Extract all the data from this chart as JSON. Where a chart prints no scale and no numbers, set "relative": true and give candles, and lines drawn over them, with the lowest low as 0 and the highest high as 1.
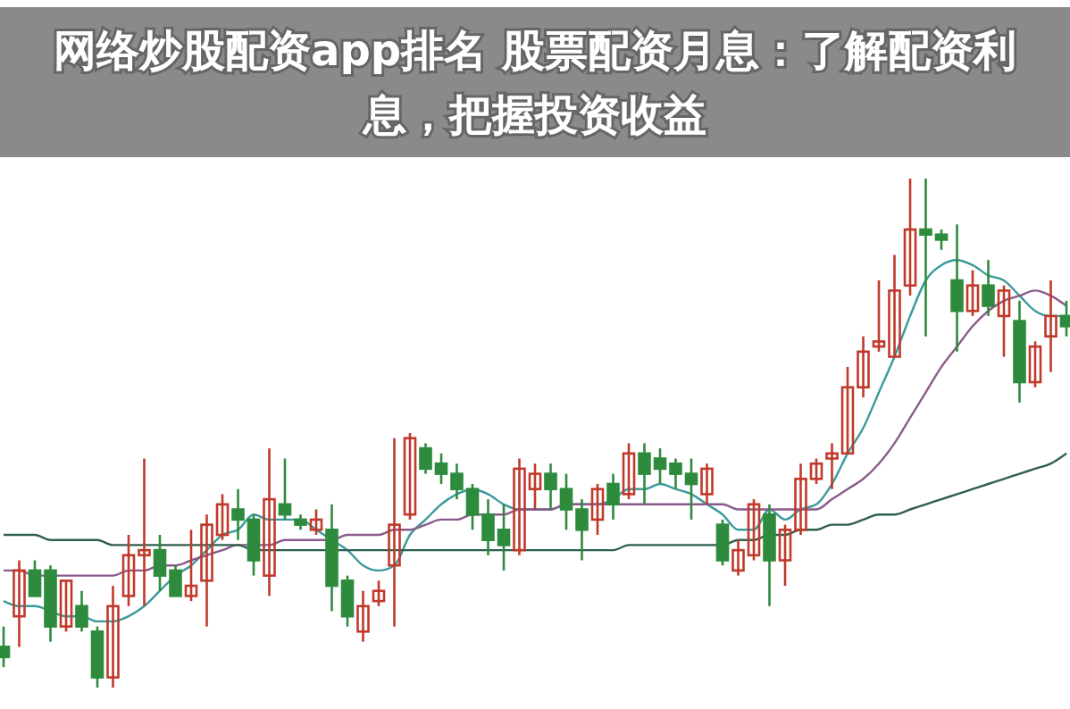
{
  "chart_data": {
    "type": "candlestick",
    "title": "网络炒股配资app排名 股票配资月息：了解配资利息，把握投资收益",
    "relative": true,
    "categories": [
      null,
      null,
      null,
      null,
      null,
      null,
      null,
      null,
      null,
      null,
      null,
      null,
      null,
      null,
      null,
      null,
      null,
      null,
      null,
      null,
      null,
      null,
      null,
      null,
      null,
      null,
      null,
      null,
      null,
      null,
      null,
      null,
      null,
      null,
      null,
      null,
      null,
      null,
      null,
      null,
      null,
      null,
      null,
      null,
      null,
      null,
      null,
      null,
      null,
      null,
      null,
      null,
      null,
      null,
      null,
      null,
      null,
      null,
      null,
      null,
      null,
      null,
      null,
      null,
      null,
      null,
      null,
      null,
      null
    ],
    "ohlc": [
      [
        0.08,
        0.12,
        0.04,
        0.06
      ],
      [
        0.14,
        0.25,
        0.08,
        0.23
      ],
      [
        0.23,
        0.25,
        0.18,
        0.18
      ],
      [
        0.23,
        0.24,
        0.09,
        0.12
      ],
      [
        0.12,
        0.21,
        0.11,
        0.21
      ],
      [
        0.16,
        0.19,
        0.11,
        0.12
      ],
      [
        0.11,
        0.12,
        0,
        0.02
      ],
      [
        0.02,
        0.2,
        0,
        0.16
      ],
      [
        0.18,
        0.3,
        0.16,
        0.26
      ],
      [
        0.26,
        0.45,
        0.16,
        0.27
      ],
      [
        0.27,
        0.3,
        0.19,
        0.22
      ],
      [
        0.23,
        0.24,
        0.18,
        0.18
      ],
      [
        0.18,
        0.31,
        0.17,
        0.2
      ],
      [
        0.21,
        0.34,
        0.12,
        0.32
      ],
      [
        0.3,
        0.38,
        0.29,
        0.36
      ],
      [
        0.35,
        0.39,
        0.29,
        0.33
      ],
      [
        0.33,
        0.34,
        0.22,
        0.25
      ],
      [
        0.22,
        0.47,
        0.18,
        0.37
      ],
      [
        0.36,
        0.45,
        0.33,
        0.34
      ],
      [
        0.33,
        0.34,
        0.31,
        0.32
      ],
      [
        0.31,
        0.35,
        0.3,
        0.33
      ],
      [
        0.31,
        0.36,
        0.15,
        0.2
      ],
      [
        0.21,
        0.22,
        0.12,
        0.14
      ],
      [
        0.11,
        0.19,
        0.09,
        0.16
      ],
      [
        0.17,
        0.21,
        0.16,
        0.19
      ],
      [
        0.24,
        0.49,
        0.12,
        0.32
      ],
      [
        0.34,
        0.5,
        0.33,
        0.49
      ],
      [
        0.47,
        0.48,
        0.42,
        0.43
      ],
      [
        0.44,
        0.46,
        0.4,
        0.42
      ],
      [
        0.42,
        0.44,
        0.37,
        0.39
      ],
      [
        0.39,
        0.4,
        0.31,
        0.34
      ],
      [
        0.34,
        0.37,
        0.26,
        0.29
      ],
      [
        0.31,
        0.36,
        0.23,
        0.28
      ],
      [
        0.27,
        0.45,
        0.26,
        0.43
      ],
      [
        0.39,
        0.44,
        0.35,
        0.42
      ],
      [
        0.42,
        0.44,
        0.35,
        0.39
      ],
      [
        0.39,
        0.42,
        0.31,
        0.35
      ],
      [
        0.35,
        0.37,
        0.25,
        0.31
      ],
      [
        0.33,
        0.4,
        0.3,
        0.39
      ],
      [
        0.4,
        0.42,
        0.33,
        0.36
      ],
      [
        0.38,
        0.48,
        0.37,
        0.46
      ],
      [
        0.46,
        0.48,
        0.36,
        0.42
      ],
      [
        0.45,
        0.47,
        0.4,
        0.43
      ],
      [
        0.44,
        0.45,
        0.39,
        0.42
      ],
      [
        0.42,
        0.45,
        0.33,
        0.4
      ],
      [
        0.38,
        0.44,
        0.36,
        0.43
      ],
      [
        0.32,
        0.33,
        0.24,
        0.25
      ],
      [
        0.23,
        0.29,
        0.22,
        0.27
      ],
      [
        0.26,
        0.37,
        0.25,
        0.36
      ],
      [
        0.34,
        0.36,
        0.16,
        0.25
      ],
      [
        0.25,
        0.32,
        0.2,
        0.31
      ],
      [
        0.31,
        0.44,
        0.3,
        0.41
      ],
      [
        0.41,
        0.45,
        0.4,
        0.44
      ],
      [
        0.45,
        0.48,
        0.39,
        0.46
      ],
      [
        0.46,
        0.63,
        0.46,
        0.59
      ],
      [
        0.59,
        0.69,
        0.57,
        0.66
      ],
      [
        0.67,
        0.8,
        0.66,
        0.68
      ],
      [
        0.65,
        0.85,
        0.65,
        0.78
      ],
      [
        0.79,
        1,
        0.77,
        0.9
      ],
      [
        0.9,
        1,
        0.69,
        0.89
      ],
      [
        0.89,
        0.9,
        0.86,
        0.88
      ],
      [
        0.8,
        0.91,
        0.66,
        0.74
      ],
      [
        0.74,
        0.82,
        0.73,
        0.79
      ],
      [
        0.79,
        0.84,
        0.73,
        0.75
      ],
      [
        0.73,
        0.79,
        0.65,
        0.78
      ],
      [
        0.72,
        0.76,
        0.56,
        0.6
      ],
      [
        0.6,
        0.68,
        0.59,
        0.67
      ],
      [
        0.69,
        0.8,
        0.62,
        0.73
      ],
      [
        0.73,
        0.76,
        0.69,
        0.71
      ]
    ],
    "colors": [
      "#2e8b3e",
      "#c0392b",
      "#2e8b3e",
      "#2e8b3e",
      "#c0392b",
      "#2e8b3e",
      "#2e8b3e",
      "#c0392b",
      "#c0392b",
      "#c0392b",
      "#2e8b3e",
      "#2e8b3e",
      "#c0392b",
      "#c0392b",
      "#c0392b",
      "#2e8b3e",
      "#2e8b3e",
      "#c0392b",
      "#2e8b3e",
      "#2e8b3e",
      "#c0392b",
      "#2e8b3e",
      "#2e8b3e",
      "#c0392b",
      "#c0392b",
      "#c0392b",
      "#c0392b",
      "#2e8b3e",
      "#2e8b3e",
      "#2e8b3e",
      "#2e8b3e",
      "#2e8b3e",
      "#2e8b3e",
      "#c0392b",
      "#c0392b",
      "#2e8b3e",
      "#2e8b3e",
      "#2e8b3e",
      "#c0392b",
      "#2e8b3e",
      "#c0392b",
      "#2e8b3e",
      "#2e8b3e",
      "#2e8b3e",
      "#2e8b3e",
      "#c0392b",
      "#2e8b3e",
      "#c0392b",
      "#c0392b",
      "#2e8b3e",
      "#c0392b",
      "#c0392b",
      "#c0392b",
      "#c0392b",
      "#c0392b",
      "#c0392b",
      "#c0392b",
      "#c0392b",
      "#c0392b",
      "#2e8b3e",
      "#2e8b3e",
      "#2e8b3e",
      "#c0392b",
      "#2e8b3e",
      "#c0392b",
      "#2e8b3e",
      "#c0392b",
      "#c0392b",
      "#2e8b3e"
    ],
    "series": [
      {
        "type": "line",
        "color": "#3a9a9a",
        "values": [
          0.17,
          0.16,
          0.16,
          0.15,
          0.14,
          0.14,
          0.13,
          0.13,
          0.14,
          0.16,
          0.19,
          0.22,
          0.24,
          0.27,
          0.3,
          0.31,
          0.34,
          0.33,
          0.33,
          0.33,
          0.31,
          0.29,
          0.27,
          0.24,
          0.23,
          0.24,
          0.3,
          0.33,
          0.36,
          0.38,
          0.39,
          0.38,
          0.36,
          0.35,
          0.35,
          0.35,
          0.36,
          0.36,
          0.36,
          0.37,
          0.39,
          0.39,
          0.4,
          0.39,
          0.38,
          0.36,
          0.34,
          0.31,
          0.31,
          0.35,
          0.33,
          0.35,
          0.36,
          0.4,
          0.46,
          0.51,
          0.58,
          0.65,
          0.73,
          0.8,
          0.83,
          0.84,
          0.83,
          0.81,
          0.8,
          0.77,
          0.74,
          0.73,
          0.73
        ]
      },
      {
        "type": "line",
        "color": "#8b5a8b",
        "values": [
          0.23,
          0.23,
          0.22,
          0.22,
          0.22,
          0.22,
          0.22,
          0.22,
          0.23,
          0.23,
          0.24,
          0.24,
          0.25,
          0.26,
          0.27,
          0.28,
          0.28,
          0.28,
          0.29,
          0.29,
          0.29,
          0.29,
          0.3,
          0.3,
          0.3,
          0.31,
          0.31,
          0.32,
          0.33,
          0.33,
          0.34,
          0.34,
          0.34,
          0.35,
          0.35,
          0.35,
          0.36,
          0.36,
          0.36,
          0.36,
          0.36,
          0.36,
          0.36,
          0.36,
          0.36,
          0.36,
          0.36,
          0.35,
          0.35,
          0.35,
          0.35,
          0.35,
          0.35,
          0.37,
          0.39,
          0.41,
          0.44,
          0.48,
          0.53,
          0.58,
          0.63,
          0.67,
          0.71,
          0.74,
          0.76,
          0.77,
          0.78,
          0.77,
          0.75
        ]
      },
      {
        "type": "line",
        "color": "#2f5f4f",
        "values": [
          0.3,
          0.3,
          0.3,
          0.29,
          0.29,
          0.29,
          0.29,
          0.28,
          0.28,
          0.28,
          0.28,
          0.28,
          0.28,
          0.28,
          0.28,
          0.28,
          0.27,
          0.27,
          0.27,
          0.27,
          0.27,
          0.27,
          0.27,
          0.27,
          0.27,
          0.27,
          0.27,
          0.27,
          0.27,
          0.27,
          0.27,
          0.27,
          0.27,
          0.27,
          0.27,
          0.27,
          0.27,
          0.27,
          0.27,
          0.27,
          0.28,
          0.28,
          0.28,
          0.28,
          0.28,
          0.28,
          0.28,
          0.29,
          0.29,
          0.3,
          0.3,
          0.31,
          0.31,
          0.32,
          0.32,
          0.33,
          0.34,
          0.34,
          0.35,
          0.36,
          0.37,
          0.38,
          0.39,
          0.4,
          0.41,
          0.42,
          0.43,
          0.44,
          0.46
        ]
      }
    ]
  }
}
